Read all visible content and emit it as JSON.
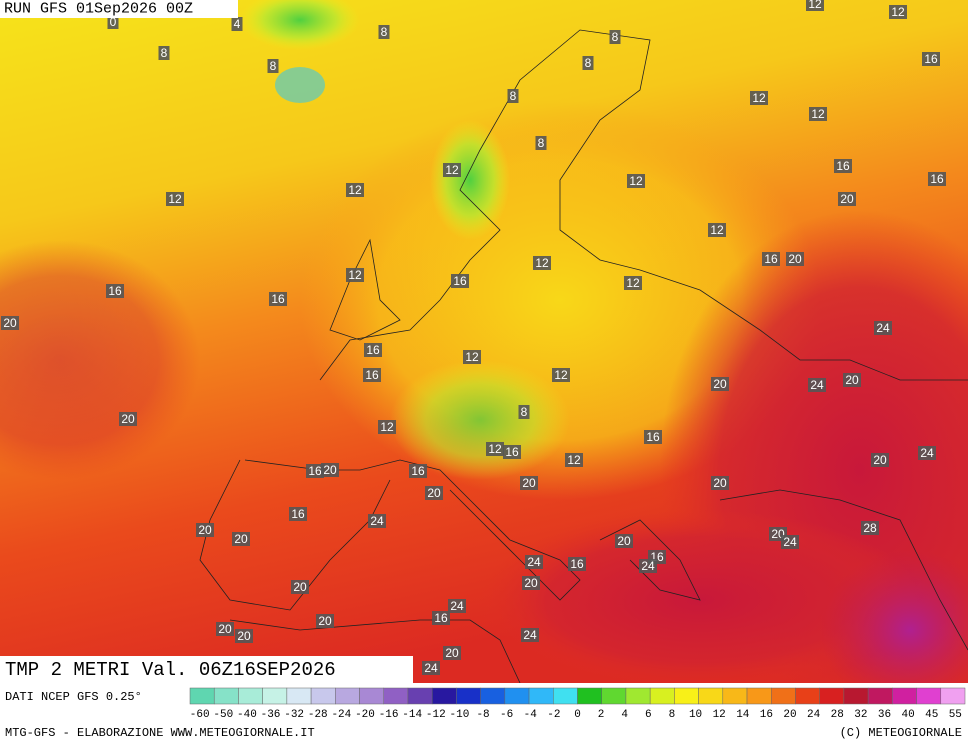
{
  "header": {
    "run": "RUN GFS 01Sep2026 00Z"
  },
  "map": {
    "field_title": "TMP 2 METRI Val. 06Z16SEP2026",
    "isotherm_labels": [
      0,
      4,
      8,
      8,
      8,
      8,
      8,
      8,
      8,
      12,
      12,
      16,
      12,
      12,
      12,
      12,
      12,
      12,
      16,
      16,
      20,
      12,
      16,
      20,
      12,
      12,
      16,
      12,
      16,
      16,
      20,
      24,
      16,
      12,
      16,
      12,
      20,
      24,
      20,
      8,
      20,
      12,
      16,
      12,
      16,
      12,
      20,
      24,
      16,
      20,
      16,
      20,
      20,
      20,
      16,
      24,
      20,
      20,
      28,
      20,
      24,
      20,
      16,
      24,
      16,
      24,
      20,
      20,
      24,
      16,
      20,
      20,
      20,
      24,
      20,
      24
    ]
  },
  "footer": {
    "source": "DATI NCEP GFS 0.25°",
    "credits": "MTG-GFS - ELABORAZIONE WWW.METEOGIORNALE.IT",
    "copyright": "(C) METEOGIORNALE"
  },
  "scale": {
    "ticks": [
      -60,
      -50,
      -40,
      -36,
      -32,
      -28,
      -24,
      -20,
      -16,
      -14,
      -12,
      -10,
      -8,
      -6,
      -4,
      -2,
      0,
      2,
      4,
      6,
      8,
      10,
      12,
      14,
      16,
      20,
      24,
      28,
      32,
      36,
      40,
      45,
      55
    ],
    "colors": [
      "#5fd6b0",
      "#86e2c8",
      "#a8ecd8",
      "#c6f2e6",
      "#d8e8f4",
      "#c8c8ec",
      "#b8a8e0",
      "#a888d4",
      "#9060c4",
      "#6840b0",
      "#2818a0",
      "#1830c8",
      "#1860e0",
      "#2090f0",
      "#30b8f8",
      "#40e0f0",
      "#20c020",
      "#60d830",
      "#a0e830",
      "#d8f020",
      "#f8f018",
      "#f8d818",
      "#f8b818",
      "#f89818",
      "#f07018",
      "#e84018",
      "#d82020",
      "#b81830",
      "#c01860",
      "#d020a0",
      "#e040d0",
      "#f0a0f0"
    ]
  }
}
